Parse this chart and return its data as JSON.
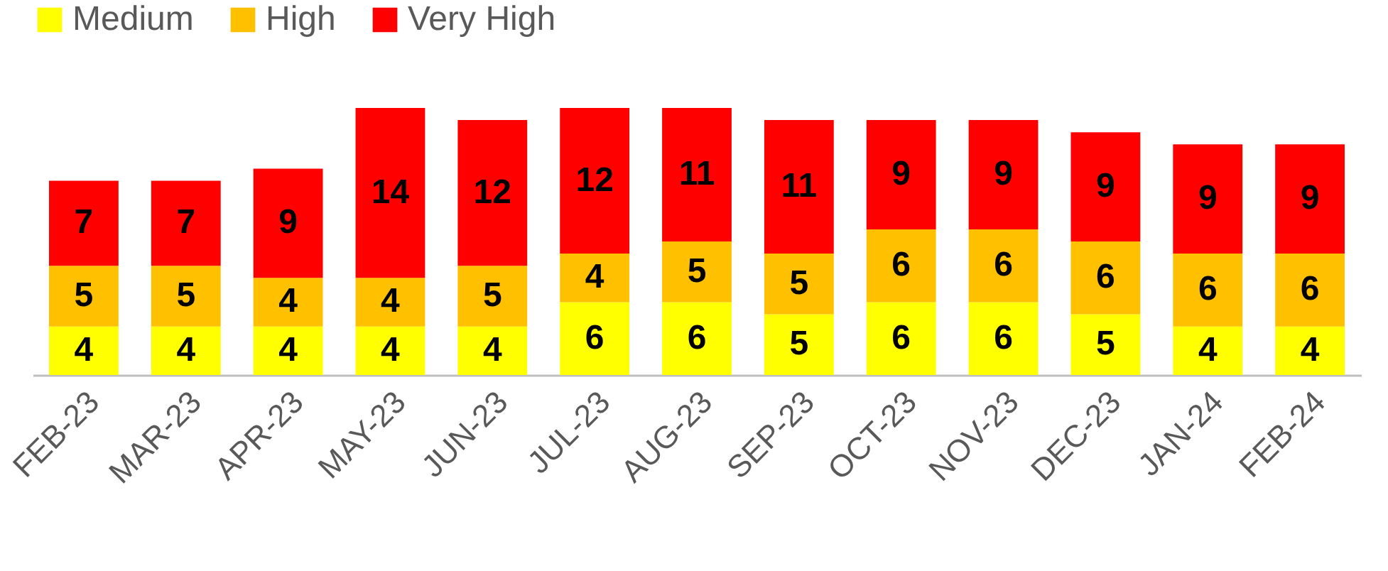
{
  "chart_data": {
    "type": "bar",
    "stacked": true,
    "data_labels": true,
    "legend": "top",
    "grid": false,
    "categories": [
      "FEB-23",
      "MAR-23",
      "APR-23",
      "MAY-23",
      "JUN-23",
      "JUL-23",
      "AUG-23",
      "SEP-23",
      "OCT-23",
      "NOV-23",
      "DEC-23",
      "JAN-24",
      "FEB-24"
    ],
    "series": [
      {
        "name": "Medium",
        "color": "#ffff00",
        "values": [
          4,
          4,
          4,
          4,
          4,
          6,
          6,
          5,
          6,
          6,
          5,
          4,
          4
        ]
      },
      {
        "name": "High",
        "color": "#ffc000",
        "values": [
          5,
          5,
          4,
          4,
          5,
          4,
          5,
          5,
          6,
          6,
          6,
          6,
          6
        ]
      },
      {
        "name": "Very High",
        "color": "#ff0000",
        "values": [
          7,
          7,
          9,
          14,
          12,
          12,
          11,
          11,
          9,
          9,
          9,
          9,
          9
        ]
      }
    ]
  }
}
